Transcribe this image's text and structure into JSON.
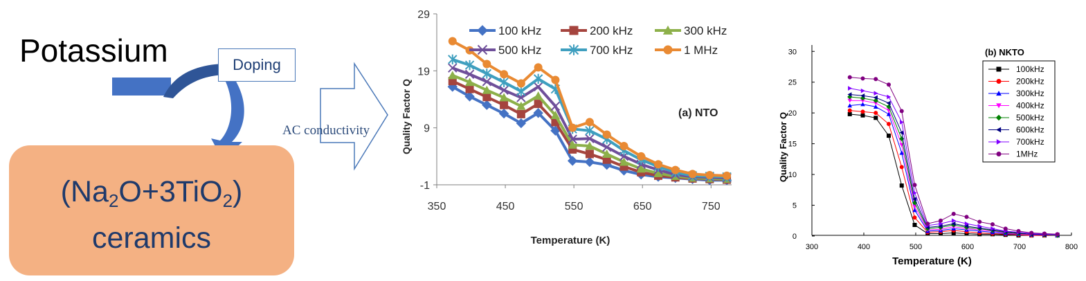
{
  "left_panel": {
    "potassium": "Potassium",
    "doping": "Doping",
    "ceramic_formula_open": "(Na",
    "ceramic_sub1": "2",
    "ceramic_mid": "O+3TiO",
    "ceramic_sub2": "2",
    "ceramic_close": ")",
    "ceramic_word": "ceramics",
    "ac_label": "AC conductivity"
  },
  "colors": {
    "shape_blue": "#4472c4",
    "box_fill": "#f4b183"
  },
  "chart_data": [
    {
      "type": "line",
      "title": "(a) NTO",
      "xlabel": "Temperature (K)",
      "ylabel": "Quality Factor Q",
      "xlim": [
        350,
        780
      ],
      "ylim": [
        -1,
        29
      ],
      "xticks": [
        "350",
        "450",
        "550",
        "650",
        "750"
      ],
      "xtick_values": [
        350,
        450,
        550,
        650,
        750
      ],
      "yticks": [
        "-1",
        "9",
        "19",
        "29"
      ],
      "ytick_values": [
        -1,
        9,
        19,
        29
      ],
      "x": [
        373,
        398,
        423,
        448,
        473,
        498,
        523,
        548,
        573,
        598,
        623,
        648,
        673,
        698,
        723,
        748,
        773
      ],
      "legend_position": "top",
      "series": [
        {
          "name": "100 kHz",
          "color": "#4472c4",
          "marker": "diamond",
          "values": [
            16.2,
            14.5,
            13.0,
            11.5,
            9.8,
            11.6,
            8.5,
            3.2,
            3.0,
            2.5,
            1.5,
            0.8,
            0.4,
            0.2,
            0.0,
            -0.2,
            -0.2
          ]
        },
        {
          "name": "200 kHz",
          "color": "#a5443e",
          "marker": "square",
          "values": [
            17.2,
            15.8,
            14.4,
            13.0,
            11.4,
            13.2,
            10.0,
            5.2,
            4.4,
            3.4,
            2.2,
            1.2,
            0.6,
            0.3,
            0.1,
            0.0,
            -0.1
          ]
        },
        {
          "name": "300 kHz",
          "color": "#8db04a",
          "marker": "triangle",
          "values": [
            18.2,
            17.0,
            15.6,
            14.3,
            12.8,
            14.6,
            11.2,
            6.0,
            5.8,
            4.4,
            3.0,
            1.8,
            1.0,
            0.5,
            0.2,
            0.1,
            0.0
          ]
        },
        {
          "name": "500 kHz",
          "color": "#6f4f9a",
          "marker": "x",
          "values": [
            19.5,
            18.4,
            17.1,
            15.6,
            14.3,
            16.2,
            12.8,
            7.0,
            7.1,
            5.6,
            4.0,
            2.6,
            1.6,
            0.8,
            0.4,
            0.3,
            0.2
          ]
        },
        {
          "name": "700 kHz",
          "color": "#3f9fbf",
          "marker": "star",
          "values": [
            21.0,
            20.0,
            18.5,
            17.0,
            15.4,
            17.6,
            15.8,
            8.8,
            8.5,
            7.0,
            5.0,
            3.4,
            2.2,
            1.2,
            0.6,
            0.5,
            0.4
          ]
        },
        {
          "name": "1 MHz",
          "color": "#e98a33",
          "marker": "circle",
          "values": [
            24.2,
            22.6,
            20.2,
            18.4,
            16.8,
            19.6,
            17.4,
            9.0,
            10.0,
            7.8,
            5.8,
            4.0,
            2.6,
            1.6,
            0.9,
            0.7,
            0.6
          ]
        }
      ]
    },
    {
      "type": "line",
      "title": "(b) NKTO",
      "xlabel": "Temperature (K)",
      "ylabel": "Quality Factor Q",
      "xlim": [
        300,
        800
      ],
      "ylim": [
        0,
        30
      ],
      "xticks": [
        "300",
        "400",
        "500",
        "600",
        "700",
        "800"
      ],
      "xtick_values": [
        300,
        400,
        500,
        600,
        700,
        800
      ],
      "yticks": [
        "0",
        "5",
        "10",
        "15",
        "20",
        "25",
        "30"
      ],
      "ytick_values": [
        0,
        5,
        10,
        15,
        20,
        25,
        30
      ],
      "x": [
        373,
        398,
        423,
        448,
        473,
        498,
        523,
        548,
        573,
        598,
        623,
        648,
        673,
        698,
        723,
        748,
        773
      ],
      "legend_position": "top-right",
      "series": [
        {
          "name": "100kHz",
          "color": "#000000",
          "marker": "square",
          "values": [
            19.8,
            19.6,
            19.2,
            16.3,
            8.2,
            1.8,
            0.4,
            0.4,
            0.5,
            0.4,
            0.3,
            0.3,
            0.2,
            0.1,
            0.1,
            0.1,
            0.1
          ]
        },
        {
          "name": "200kHz",
          "color": "#ff0000",
          "marker": "circle",
          "values": [
            20.4,
            20.2,
            20.0,
            18.2,
            11.2,
            3.0,
            0.6,
            0.7,
            0.9,
            0.7,
            0.5,
            0.4,
            0.3,
            0.2,
            0.1,
            0.1,
            0.1
          ]
        },
        {
          "name": "300kHz",
          "color": "#0000ff",
          "marker": "triangle",
          "values": [
            21.2,
            21.4,
            21.0,
            19.8,
            13.5,
            4.2,
            0.8,
            0.9,
            1.2,
            1.0,
            0.8,
            0.6,
            0.4,
            0.3,
            0.2,
            0.2,
            0.1
          ]
        },
        {
          "name": "400kHz",
          "color": "#ff00ff",
          "marker": "triangle-down",
          "values": [
            22.0,
            22.0,
            21.6,
            20.4,
            14.8,
            4.8,
            1.0,
            1.1,
            1.5,
            1.2,
            1.0,
            0.8,
            0.5,
            0.3,
            0.2,
            0.2,
            0.1
          ]
        },
        {
          "name": "500kHz",
          "color": "#008000",
          "marker": "diamond",
          "values": [
            22.6,
            22.4,
            22.0,
            21.0,
            15.8,
            5.4,
            1.2,
            1.4,
            1.8,
            1.4,
            1.2,
            0.9,
            0.6,
            0.4,
            0.3,
            0.2,
            0.1
          ]
        },
        {
          "name": "600kHz",
          "color": "#000080",
          "marker": "triangle-left",
          "values": [
            23.0,
            22.8,
            22.5,
            21.6,
            16.8,
            6.0,
            1.4,
            1.6,
            2.0,
            1.6,
            1.3,
            1.0,
            0.7,
            0.5,
            0.3,
            0.2,
            0.2
          ]
        },
        {
          "name": "700kHz",
          "color": "#8000ff",
          "marker": "triangle-right",
          "values": [
            24.0,
            23.6,
            23.2,
            22.6,
            18.5,
            7.0,
            1.7,
            2.0,
            2.5,
            2.0,
            1.6,
            1.2,
            0.8,
            0.6,
            0.4,
            0.3,
            0.2
          ]
        },
        {
          "name": "1MHz",
          "color": "#800080",
          "marker": "circle",
          "values": [
            25.8,
            25.6,
            25.5,
            24.6,
            20.3,
            8.3,
            2.0,
            2.5,
            3.6,
            3.1,
            2.3,
            1.9,
            1.2,
            0.8,
            0.5,
            0.4,
            0.3
          ]
        }
      ]
    }
  ]
}
